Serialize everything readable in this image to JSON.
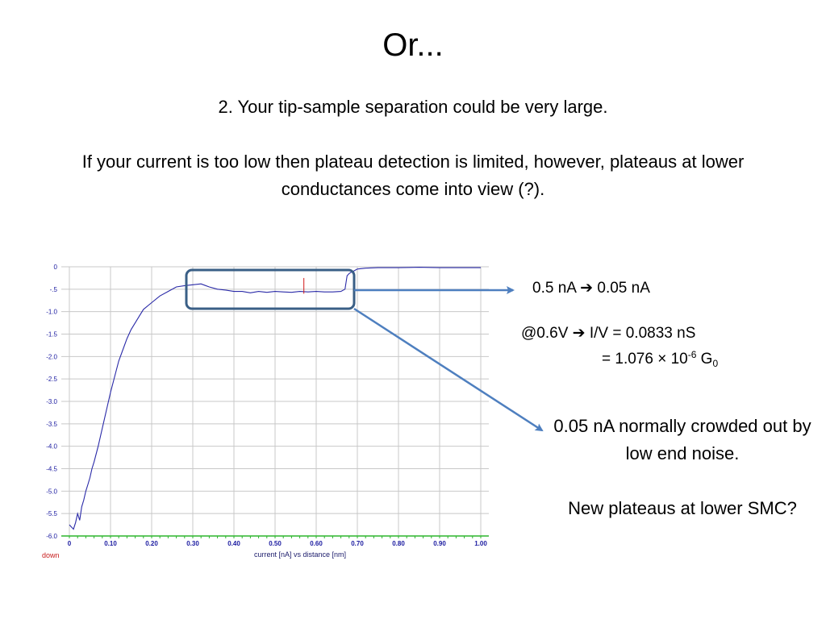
{
  "slide": {
    "title": "Or...",
    "point": "2. Your tip-sample separation could be very large.",
    "explanation": "If your current is too low then plateau detection is limited, however, plateaus at lower conductances come into view (?)."
  },
  "annotations": {
    "current_from": "0.5 nA",
    "current_to": "0.05 nA",
    "voltage": "@0.6V",
    "conductance": "I/V = 0.0833 nS",
    "equals_prefix": "= 1.076 × 10",
    "exponent": "-6",
    "unit": "G",
    "unit_subscript": "0",
    "note_1": "0.05 nA normally crowded out by low end noise.",
    "note_2": "New plateaus at lower SMC?"
  },
  "colors": {
    "trace": "#2a2aa8",
    "grid": "#c8c8c8",
    "tick_label": "#1a1aa0",
    "baseline": "#2db52d",
    "highlight_box": "#3a5f86",
    "arrow": "#4e7fbf",
    "marker": "#d01818",
    "status": "#c81e1e"
  },
  "chart_data": {
    "type": "line",
    "xlabel": "current [nA] vs distance [nm]",
    "status_label": "down",
    "xlim": [
      0,
      1.0
    ],
    "ylim": [
      -6.0,
      0
    ],
    "x_ticks": [
      {
        "v": 0,
        "label": "0"
      },
      {
        "v": 0.1,
        "label": "0.10"
      },
      {
        "v": 0.2,
        "label": "0.20"
      },
      {
        "v": 0.3,
        "label": "0.30"
      },
      {
        "v": 0.4,
        "label": "0.40"
      },
      {
        "v": 0.5,
        "label": "0.50"
      },
      {
        "v": 0.6,
        "label": "0.60"
      },
      {
        "v": 0.7,
        "label": "0.70"
      },
      {
        "v": 0.8,
        "label": "0.80"
      },
      {
        "v": 0.9,
        "label": "0.90"
      },
      {
        "v": 1.0,
        "label": "1.00"
      }
    ],
    "y_ticks": [
      {
        "v": 0,
        "label": "0"
      },
      {
        "v": -0.5,
        "label": "-.5"
      },
      {
        "v": -1.0,
        "label": "-1.0"
      },
      {
        "v": -1.5,
        "label": "-1.5"
      },
      {
        "v": -2.0,
        "label": "-2.0"
      },
      {
        "v": -2.5,
        "label": "-2.5"
      },
      {
        "v": -3.0,
        "label": "-3.0"
      },
      {
        "v": -3.5,
        "label": "-3.5"
      },
      {
        "v": -4.0,
        "label": "-4.0"
      },
      {
        "v": -4.5,
        "label": "-4.5"
      },
      {
        "v": -5.0,
        "label": "-5.0"
      },
      {
        "v": -5.5,
        "label": "-5.5"
      },
      {
        "v": -6.0,
        "label": "-6.0"
      }
    ],
    "grid": true,
    "series": [
      {
        "x": [
          0.0,
          0.01,
          0.015,
          0.02,
          0.025,
          0.03,
          0.035,
          0.04,
          0.045,
          0.05,
          0.055,
          0.06,
          0.07,
          0.08,
          0.09,
          0.1,
          0.11,
          0.12,
          0.13,
          0.14,
          0.15,
          0.16,
          0.17,
          0.18,
          0.2,
          0.22,
          0.24,
          0.26,
          0.28,
          0.3,
          0.32,
          0.34,
          0.36,
          0.38,
          0.4,
          0.42,
          0.44,
          0.46,
          0.48,
          0.5,
          0.52,
          0.54,
          0.56,
          0.58,
          0.6,
          0.62,
          0.64,
          0.66,
          0.67,
          0.675,
          0.68,
          0.685,
          0.69,
          0.7,
          0.72,
          0.75,
          0.8,
          0.85,
          0.9,
          0.95,
          1.0
        ],
        "y": [
          -5.75,
          -5.85,
          -5.7,
          -5.5,
          -5.65,
          -5.35,
          -5.2,
          -5.0,
          -4.85,
          -4.7,
          -4.5,
          -4.35,
          -4.0,
          -3.6,
          -3.2,
          -2.8,
          -2.45,
          -2.1,
          -1.85,
          -1.6,
          -1.4,
          -1.25,
          -1.1,
          -0.95,
          -0.8,
          -0.65,
          -0.55,
          -0.45,
          -0.42,
          -0.4,
          -0.38,
          -0.45,
          -0.5,
          -0.52,
          -0.55,
          -0.55,
          -0.58,
          -0.55,
          -0.57,
          -0.55,
          -0.56,
          -0.57,
          -0.55,
          -0.56,
          -0.55,
          -0.56,
          -0.56,
          -0.55,
          -0.5,
          -0.2,
          -0.15,
          -0.12,
          -0.1,
          -0.05,
          -0.03,
          -0.02,
          -0.02,
          -0.01,
          -0.02,
          -0.02,
          -0.02
        ]
      }
    ],
    "marker_x": 0.57
  }
}
